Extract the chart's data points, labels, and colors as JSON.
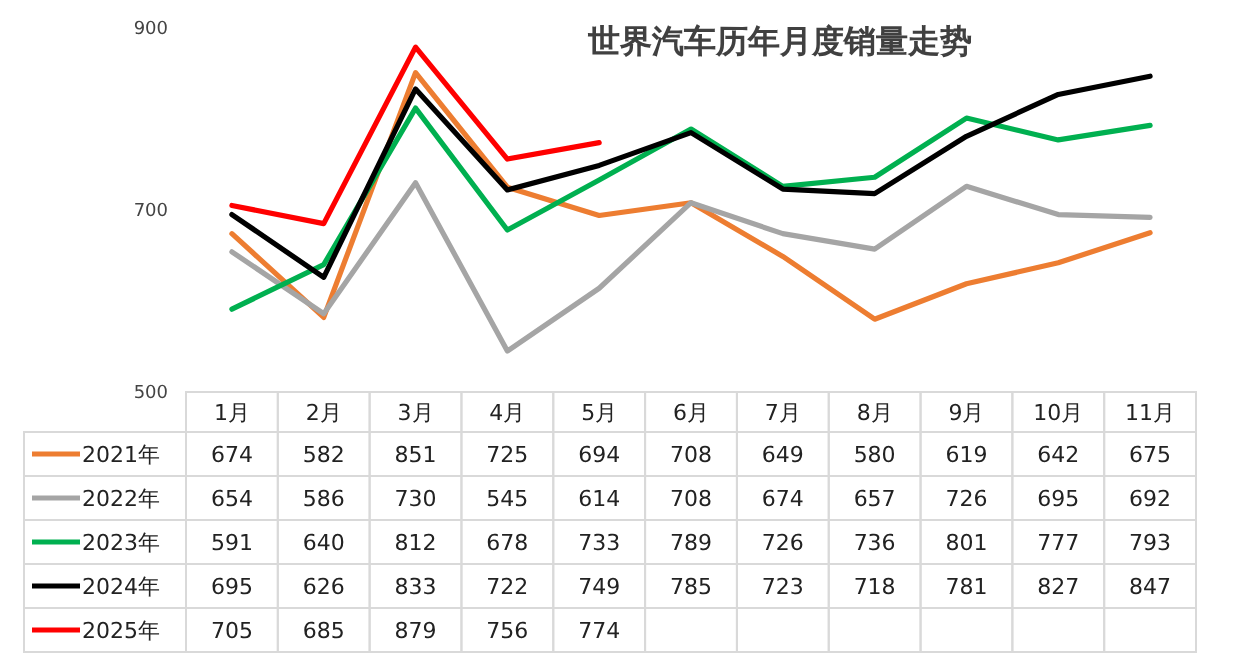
{
  "chart_data": {
    "type": "line",
    "title": "世界汽车历年月度销量走势",
    "categories": [
      "1月",
      "2月",
      "3月",
      "4月",
      "5月",
      "6月",
      "7月",
      "8月",
      "9月",
      "10月",
      "11月"
    ],
    "series": [
      {
        "name": "2021年",
        "color": "#ed7d31",
        "values": [
          674,
          582,
          851,
          725,
          694,
          708,
          649,
          580,
          619,
          642,
          675
        ]
      },
      {
        "name": "2022年",
        "color": "#a5a5a5",
        "values": [
          654,
          586,
          730,
          545,
          614,
          708,
          674,
          657,
          726,
          695,
          692
        ]
      },
      {
        "name": "2023年",
        "color": "#00b050",
        "values": [
          591,
          640,
          812,
          678,
          733,
          789,
          726,
          736,
          801,
          777,
          793
        ]
      },
      {
        "name": "2024年",
        "color": "#000000",
        "values": [
          695,
          626,
          833,
          722,
          749,
          785,
          723,
          718,
          781,
          827,
          847
        ]
      },
      {
        "name": "2025年",
        "color": "#ff0000",
        "values": [
          705,
          685,
          879,
          756,
          774,
          null,
          null,
          null,
          null,
          null,
          null
        ]
      }
    ],
    "ylim": [
      500,
      900
    ],
    "yticks": [
      500,
      700,
      900
    ],
    "grid": false,
    "legend": "bottom",
    "data_labels": true,
    "marker": "none",
    "line_style": "solid"
  }
}
